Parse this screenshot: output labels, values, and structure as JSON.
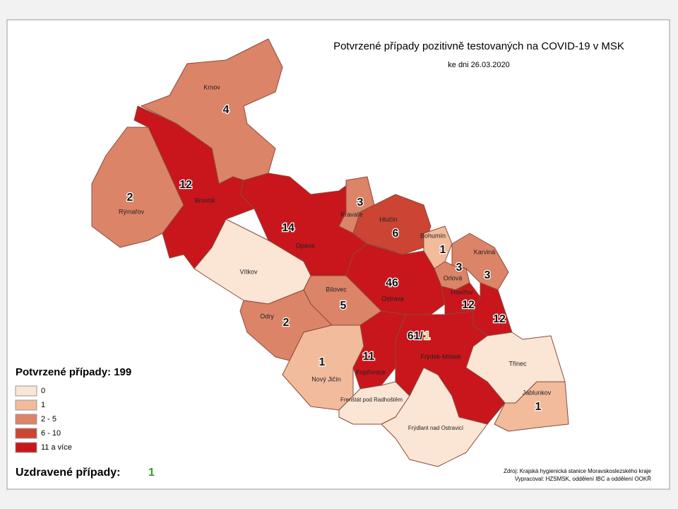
{
  "header": {
    "title": "Potvrzené případy pozitivně testovaných na COVID-19 v MSK",
    "subtitle": "ke dni 26.03.2020"
  },
  "regions": [
    {
      "name": "Krnov",
      "count": "4",
      "color": "#dc8468"
    },
    {
      "name": "Bruntál",
      "count": "12",
      "color": "#c8161c"
    },
    {
      "name": "Rýmařov",
      "count": "2",
      "color": "#dc8468"
    },
    {
      "name": "Opava",
      "count": "14",
      "color": "#c8161c"
    },
    {
      "name": "Vítkov",
      "color": "#fbe5d4"
    },
    {
      "name": "Kravaře",
      "count": "3",
      "color": "#dc8468"
    },
    {
      "name": "Hlučín",
      "count": "6",
      "color": "#cc4433"
    },
    {
      "name": "Bohumín",
      "count": "1",
      "color": "#f2bb9c"
    },
    {
      "name": "Karviná",
      "count": "3",
      "color": "#dc8468"
    },
    {
      "name": "Orlová",
      "count": "3",
      "color": "#dc8468"
    },
    {
      "name": "Ostrava",
      "count": "46",
      "color": "#c8161c"
    },
    {
      "name": "Havířov",
      "count": "12",
      "color": "#c8161c"
    },
    {
      "count": "12",
      "color": "#c8161c"
    },
    {
      "name": "Bílovec",
      "count": "5",
      "color": "#dc8468"
    },
    {
      "name": "Odry",
      "count": "2",
      "color": "#dc8468"
    },
    {
      "name": "Kopřivnice",
      "count": "11",
      "color": "#c8161c"
    },
    {
      "name": "Nový Jičín",
      "count": "1",
      "color": "#f2bb9c"
    },
    {
      "name": "Frýdek-Místek",
      "count": "61/",
      "recovered": "1",
      "color": "#c8161c"
    },
    {
      "name": "Třinec",
      "color": "#fbe5d4"
    },
    {
      "name": "Jablunkov",
      "count": "1",
      "color": "#f2bb9c"
    },
    {
      "name": "Frenštát pod Radhoštěm",
      "color": "#fbe5d4"
    },
    {
      "name": "Frýdlant nad Ostravicí",
      "color": "#fbe5d4"
    }
  ],
  "legend": {
    "title": "Potvrzené případy: 199",
    "items": [
      {
        "label": "0",
        "color": "#fbe5d4"
      },
      {
        "label": "1",
        "color": "#f2bb9c"
      },
      {
        "label": "2 - 5",
        "color": "#dc8468"
      },
      {
        "label": "6 - 10",
        "color": "#cc4433"
      },
      {
        "label": "11 a více",
        "color": "#c8161c"
      }
    ]
  },
  "recovered": {
    "label": "Uzdravené případy:",
    "value": "1"
  },
  "source": [
    "Zdroj: Krajská hygienická stanice Moravskoslezského kraje",
    "Vypracoval: HZSMSK, oddělení IBC a oddělení OOKŘ"
  ]
}
